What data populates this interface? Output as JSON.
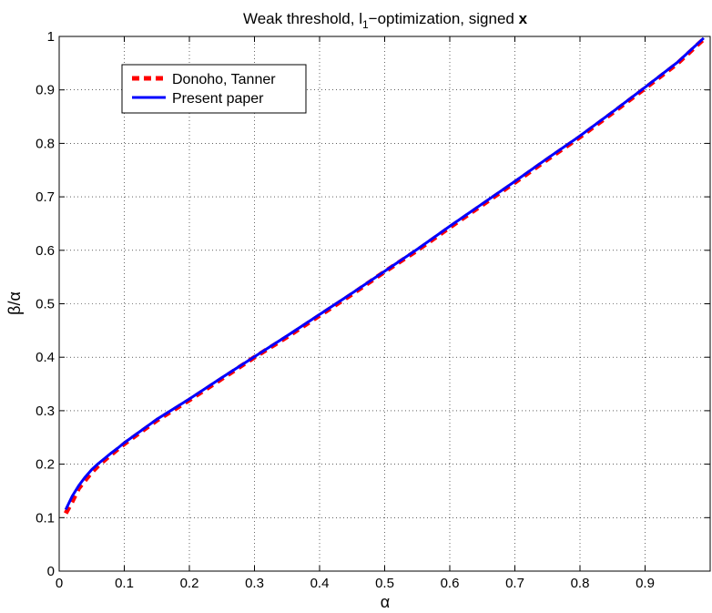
{
  "chart_data": {
    "type": "line",
    "title": {
      "prefix": "Weak threshold, l",
      "subscript": "1",
      "middle": "−optimization, signed ",
      "bold": "x"
    },
    "xlabel": "α",
    "ylabel": "β/α",
    "xlim": [
      0,
      1
    ],
    "ylim": [
      0,
      1
    ],
    "xticks": [
      0,
      0.1,
      0.2,
      0.3,
      0.4,
      0.5,
      0.6,
      0.7,
      0.8,
      0.9
    ],
    "xtick_labels": [
      "0",
      "0.1",
      "0.2",
      "0.3",
      "0.4",
      "0.5",
      "0.6",
      "0.7",
      "0.8",
      "0.9"
    ],
    "yticks": [
      0,
      0.1,
      0.2,
      0.3,
      0.4,
      0.5,
      0.6,
      0.7,
      0.8,
      0.9,
      1
    ],
    "ytick_labels": [
      "0",
      "0.1",
      "0.2",
      "0.3",
      "0.4",
      "0.5",
      "0.6",
      "0.7",
      "0.8",
      "0.9",
      "1"
    ],
    "grid": true,
    "legend_position": "top-left",
    "x": [
      0.01,
      0.02,
      0.03,
      0.04,
      0.05,
      0.06,
      0.07,
      0.08,
      0.09,
      0.1,
      0.15,
      0.2,
      0.25,
      0.3,
      0.35,
      0.4,
      0.45,
      0.5,
      0.55,
      0.6,
      0.65,
      0.7,
      0.75,
      0.8,
      0.85,
      0.9,
      0.95,
      0.99
    ],
    "series": [
      {
        "name": "Donoho, Tanner",
        "color": "#ff0000",
        "style": "dashed",
        "values": [
          0.108,
          0.13,
          0.155,
          0.17,
          0.185,
          0.197,
          0.208,
          0.218,
          0.228,
          0.238,
          0.282,
          0.32,
          0.36,
          0.4,
          0.438,
          0.478,
          0.518,
          0.56,
          0.6,
          0.643,
          0.685,
          0.727,
          0.77,
          0.812,
          0.857,
          0.903,
          0.95,
          0.995
        ]
      },
      {
        "name": "Present paper",
        "color": "#0000ff",
        "style": "solid",
        "values": [
          0.115,
          0.14,
          0.16,
          0.176,
          0.19,
          0.201,
          0.211,
          0.221,
          0.23,
          0.24,
          0.284,
          0.322,
          0.362,
          0.401,
          0.44,
          0.48,
          0.52,
          0.561,
          0.602,
          0.645,
          0.687,
          0.729,
          0.772,
          0.814,
          0.859,
          0.905,
          0.952,
          0.997
        ]
      }
    ]
  }
}
